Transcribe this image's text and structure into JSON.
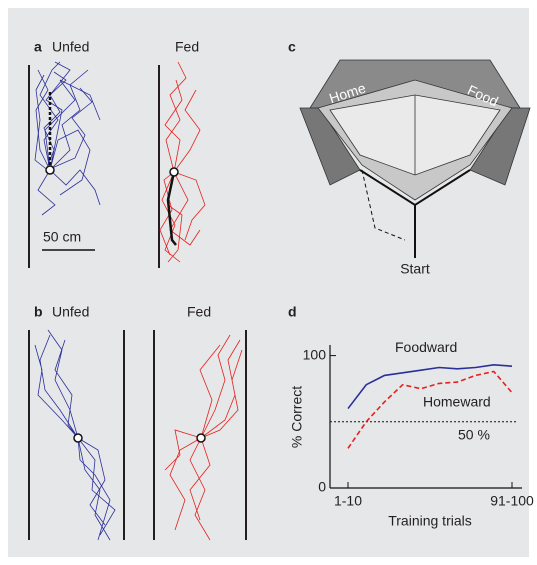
{
  "panels": {
    "a": {
      "label": "a",
      "left": "Unfed",
      "right": "Fed",
      "scale": "50 cm"
    },
    "b": {
      "label": "b",
      "left": "Unfed",
      "right": "Fed"
    },
    "c": {
      "label": "c",
      "home": "Home",
      "food": "Food",
      "start": "Start"
    },
    "d": {
      "label": "d"
    }
  },
  "chart_data": {
    "type": "line",
    "y_label": "% Correct",
    "x_label": "Training trials",
    "categories": [
      "1-10",
      null,
      null,
      null,
      null,
      null,
      null,
      null,
      null,
      "91-100"
    ],
    "series": [
      {
        "name": "Foodward",
        "color": "#2b2f9a",
        "style": "solid",
        "values": [
          60,
          78,
          85,
          87,
          89,
          91,
          90,
          91,
          93,
          92
        ]
      },
      {
        "name": "Homeward",
        "color": "#e5211d",
        "style": "dashed",
        "values": [
          30,
          50,
          65,
          78,
          75,
          79,
          80,
          85,
          88,
          72
        ]
      }
    ],
    "reference_line": {
      "value": 50,
      "label": "50 %"
    },
    "ylim": [
      0,
      108
    ],
    "yticks": [
      0,
      100
    ]
  }
}
